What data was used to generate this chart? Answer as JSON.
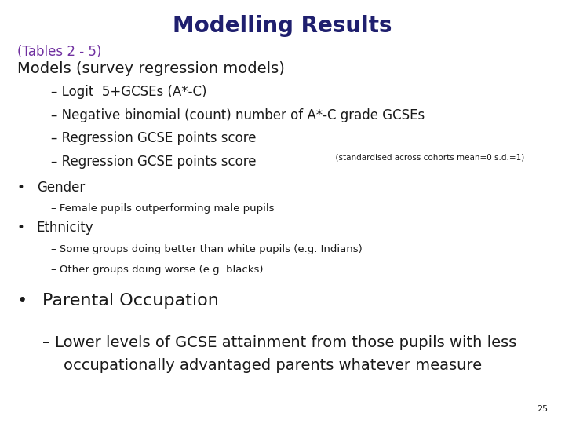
{
  "title": "Modelling Results",
  "title_color": "#1F1F6E",
  "title_fontsize": 20,
  "subtitle": "(Tables 2 - 5)",
  "subtitle_color": "#7030A0",
  "subtitle_fontsize": 12,
  "models_label": "Models (survey regression models)",
  "models_color": "#1a1a1a",
  "models_fontsize": 14,
  "dash_items": [
    "Logit  5+GCSEs (A*-C)",
    "Negative binomial (count) number of A*-C grade GCSEs",
    "Regression GCSE points score",
    "Regression GCSE points score"
  ],
  "dash_item4_suffix": "  (standardised across cohorts mean=0 s.d.=1)",
  "dash_color": "#1a1a1a",
  "dash_fontsize": 12,
  "dash_suffix_fontsize": 7.5,
  "bullet_items_small": [
    "Gender",
    "Ethnicity"
  ],
  "bullet_item_large": "Parental Occupation",
  "bullet_fontsize_small": 12,
  "bullet_fontsize_large": 16,
  "sub_bullet_items_gender": [
    "Female pupils outperforming male pupils"
  ],
  "sub_bullet_items_ethnicity": [
    "Some groups doing better than white pupils (e.g. Indians)",
    "Other groups doing worse (e.g. blacks)"
  ],
  "sub_bullet_item_parental_line1": "Lower levels of GCSE attainment from those pupils with less",
  "sub_bullet_item_parental_line2": "occupationally advantaged parents whatever measure",
  "sub_bullet_fontsize_small": 9.5,
  "sub_bullet_fontsize_large": 14,
  "page_number": "25",
  "page_number_fontsize": 8,
  "bg_color": "#ffffff",
  "text_color": "#1a1a1a"
}
